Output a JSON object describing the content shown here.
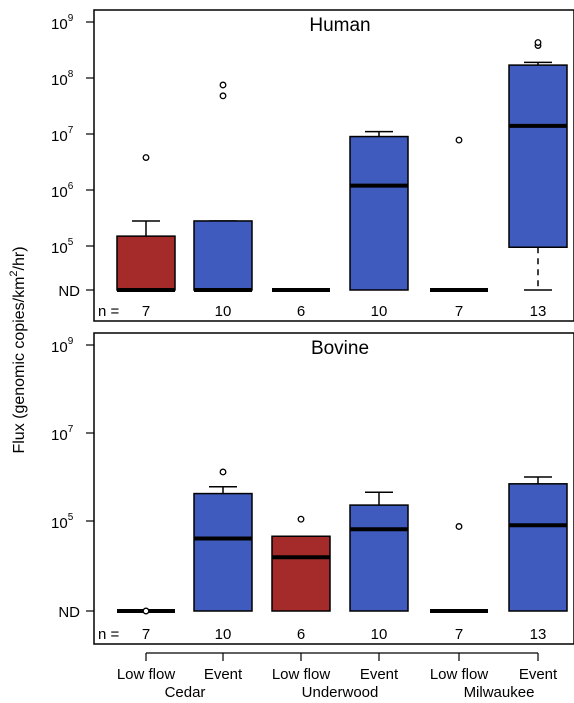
{
  "ylabel": {
    "main": "Flux (genomic copies/km",
    "sup": "2",
    "tail": "/hr)"
  },
  "n_label": "n =",
  "x_groups": [
    {
      "condition": "Low flow",
      "site": "Cedar"
    },
    {
      "condition": "Event",
      "site": ""
    },
    {
      "condition": "Low flow",
      "site": "Underwood"
    },
    {
      "condition": "Event",
      "site": ""
    },
    {
      "condition": "Low flow",
      "site": "Milwaukee"
    },
    {
      "condition": "Event",
      "site": ""
    }
  ],
  "colors": {
    "low_flow": "#a52a2a",
    "event": "#3f5bbd"
  },
  "chart_data": [
    {
      "type": "boxplot",
      "title": "Human",
      "categories": [
        "Cedar Low flow",
        "Cedar Event",
        "Underwood Low flow",
        "Underwood Event",
        "Milwaukee Low flow",
        "Milwaukee Event"
      ],
      "y_scale": "log",
      "y_ticks": [
        {
          "label": "ND",
          "exp": null
        },
        {
          "label": "10",
          "exp": "5"
        },
        {
          "label": "10",
          "exp": "6"
        },
        {
          "label": "10",
          "exp": "7"
        },
        {
          "label": "10",
          "exp": "8"
        },
        {
          "label": "10",
          "exp": "9"
        }
      ],
      "n": [
        "7",
        "10",
        "6",
        "10",
        "7",
        "13"
      ],
      "boxes": [
        {
          "color": "low_flow",
          "q1": "ND",
          "median": "ND",
          "q3": 150000,
          "whisker_low": "ND",
          "whisker_high": 280000,
          "outliers": [
            3800000
          ]
        },
        {
          "color": "event",
          "q1": "ND",
          "median": "ND",
          "q3": 280000,
          "whisker_low": "ND",
          "whisker_high": 280000,
          "outliers": [
            48000000,
            75000000
          ]
        },
        {
          "color": "low_flow",
          "q1": "ND",
          "median": "ND",
          "q3": "ND",
          "whisker_low": "ND",
          "whisker_high": "ND",
          "outliers": []
        },
        {
          "color": "event",
          "q1": "ND",
          "median": 1200000,
          "q3": 9000000,
          "whisker_low": "ND",
          "whisker_high": 11000000,
          "outliers": []
        },
        {
          "color": "low_flow",
          "q1": "ND",
          "median": "ND",
          "q3": "ND",
          "whisker_low": "ND",
          "whisker_high": "ND",
          "outliers": [
            7800000
          ]
        },
        {
          "color": "event",
          "q1": 95000,
          "median": 14000000,
          "q3": 170000000,
          "whisker_low": "ND",
          "whisker_high": 190000000,
          "outliers": [
            380000000,
            430000000
          ]
        }
      ]
    },
    {
      "type": "boxplot",
      "title": "Bovine",
      "categories": [
        "Cedar Low flow",
        "Cedar Event",
        "Underwood Low flow",
        "Underwood Event",
        "Milwaukee Low flow",
        "Milwaukee Event"
      ],
      "y_scale": "log",
      "y_ticks": [
        {
          "label": "ND",
          "exp": null
        },
        {
          "label": "10",
          "exp": "5"
        },
        {
          "label": "10",
          "exp": "7"
        },
        {
          "label": "10",
          "exp": "9"
        }
      ],
      "n": [
        "7",
        "10",
        "6",
        "10",
        "7",
        "13"
      ],
      "boxes": [
        {
          "color": "low_flow",
          "q1": "ND",
          "median": "ND",
          "q3": "ND",
          "whisker_low": "ND",
          "whisker_high": "ND",
          "outliers": [
            "ND"
          ]
        },
        {
          "color": "event",
          "q1": "ND",
          "median": 40000,
          "q3": 420000,
          "whisker_low": "ND",
          "whisker_high": 600000,
          "outliers": [
            1300000
          ]
        },
        {
          "color": "low_flow",
          "q1": "ND",
          "median": 15000,
          "q3": 45000,
          "whisker_low": "ND",
          "whisker_high": 45000,
          "outliers": [
            110000
          ]
        },
        {
          "color": "event",
          "q1": "ND",
          "median": 65000,
          "q3": 230000,
          "whisker_low": "ND",
          "whisker_high": 450000,
          "outliers": []
        },
        {
          "color": "low_flow",
          "q1": "ND",
          "median": "ND",
          "q3": "ND",
          "whisker_low": "ND",
          "whisker_high": "ND",
          "outliers": [
            75000
          ]
        },
        {
          "color": "event",
          "q1": "ND",
          "median": 80000,
          "q3": 700000,
          "whisker_low": "ND",
          "whisker_high": 1000000,
          "outliers": []
        }
      ]
    }
  ]
}
